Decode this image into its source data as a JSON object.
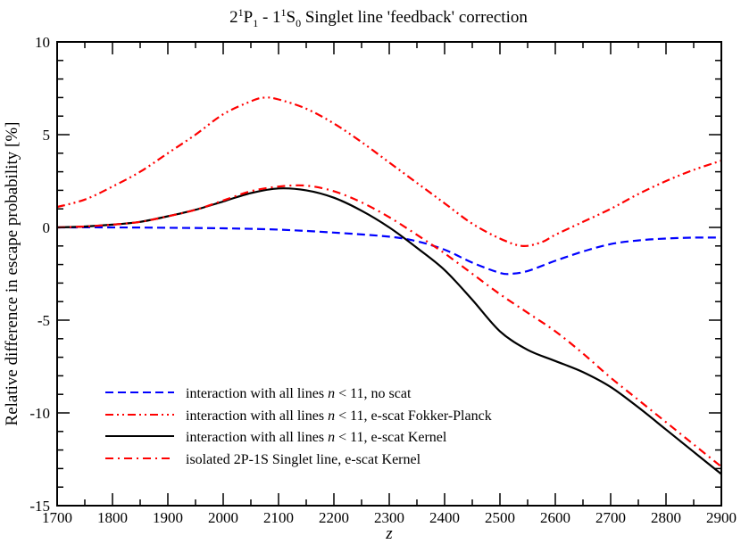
{
  "chart_data": {
    "type": "line",
    "title": "2¹P₁ - 1¹S₀ Singlet line 'feedback' correction",
    "title_parts": {
      "a": "2",
      "a_sup": "1",
      "b": "P",
      "b_sub": "1",
      "c": " - 1",
      "c_sup": "1",
      "d": "S",
      "d_sub": "0",
      "rest": " Singlet line 'feedback' correction"
    },
    "xlabel": "z",
    "ylabel": "Relative difference in escape probability [%]",
    "xlim": [
      1700,
      2900
    ],
    "ylim": [
      -15,
      10
    ],
    "xticks": [
      "1700",
      "1800",
      "1900",
      "2000",
      "2100",
      "2200",
      "2300",
      "2400",
      "2500",
      "2600",
      "2700",
      "2800",
      "2900"
    ],
    "yticks": [
      "10",
      "5",
      "0",
      "-5",
      "-10",
      "-15"
    ],
    "grid": false,
    "legend_position": "lower left (inside)",
    "series": [
      {
        "name": "interaction with all lines n < 11, no scat",
        "label_pre": "interaction with all lines ",
        "label_var": "n",
        "label_post": " < 11, no scat",
        "color": "#0000ff",
        "style": "dashed",
        "x": [
          1700,
          1800,
          1900,
          2000,
          2100,
          2200,
          2300,
          2350,
          2400,
          2450,
          2500,
          2520,
          2550,
          2600,
          2650,
          2700,
          2750,
          2800,
          2850,
          2900
        ],
        "values": [
          0.0,
          0.0,
          -0.02,
          -0.05,
          -0.12,
          -0.28,
          -0.5,
          -0.75,
          -1.2,
          -1.9,
          -2.45,
          -2.5,
          -2.35,
          -1.8,
          -1.3,
          -0.9,
          -0.7,
          -0.6,
          -0.55,
          -0.55
        ]
      },
      {
        "name": "interaction with all lines n < 11, e-scat Fokker-Planck",
        "label_pre": "interaction with all lines ",
        "label_var": "n",
        "label_post": " < 11, e-scat Fokker-Planck",
        "color": "#ff0000",
        "style": "dash-dot-dot",
        "x": [
          1700,
          1750,
          1800,
          1850,
          1900,
          1950,
          2000,
          2050,
          2075,
          2100,
          2150,
          2200,
          2250,
          2300,
          2350,
          2400,
          2450,
          2500,
          2540,
          2575,
          2600,
          2650,
          2700,
          2750,
          2800,
          2850,
          2900
        ],
        "values": [
          1.1,
          1.5,
          2.2,
          3.0,
          4.0,
          5.0,
          6.1,
          6.8,
          7.0,
          6.9,
          6.4,
          5.6,
          4.6,
          3.5,
          2.4,
          1.3,
          0.2,
          -0.6,
          -1.0,
          -0.8,
          -0.4,
          0.3,
          1.0,
          1.8,
          2.5,
          3.1,
          3.6
        ]
      },
      {
        "name": "interaction with all lines n < 11, e-scat Kernel",
        "label_pre": "interaction with all lines ",
        "label_var": "n",
        "label_post": " < 11, e-scat Kernel",
        "color": "#000000",
        "style": "solid",
        "x": [
          1700,
          1750,
          1800,
          1850,
          1900,
          1950,
          2000,
          2050,
          2100,
          2150,
          2200,
          2250,
          2300,
          2350,
          2400,
          2450,
          2500,
          2550,
          2600,
          2650,
          2700,
          2750,
          2800,
          2850,
          2900
        ],
        "values": [
          0.0,
          0.05,
          0.15,
          0.3,
          0.6,
          0.95,
          1.4,
          1.85,
          2.1,
          2.0,
          1.6,
          0.9,
          0.0,
          -1.1,
          -2.3,
          -3.9,
          -5.6,
          -6.6,
          -7.2,
          -7.8,
          -8.6,
          -9.7,
          -10.9,
          -12.1,
          -13.3
        ]
      },
      {
        "name": "isolated 2P-1S Singlet line, e-scat Kernel",
        "label_pre": "isolated 2P-1S Singlet line, e-scat Kernel",
        "label_var": "",
        "label_post": "",
        "color": "#ff0000",
        "style": "dash-dot",
        "x": [
          1700,
          1750,
          1800,
          1850,
          1900,
          1950,
          2000,
          2050,
          2100,
          2150,
          2200,
          2250,
          2300,
          2350,
          2400,
          2450,
          2500,
          2550,
          2600,
          2650,
          2700,
          2750,
          2800,
          2850,
          2900
        ],
        "values": [
          0.0,
          0.05,
          0.15,
          0.3,
          0.6,
          0.95,
          1.45,
          1.95,
          2.2,
          2.25,
          1.95,
          1.35,
          0.55,
          -0.4,
          -1.4,
          -2.5,
          -3.6,
          -4.6,
          -5.6,
          -6.8,
          -8.1,
          -9.3,
          -10.5,
          -11.7,
          -12.9
        ]
      }
    ]
  }
}
